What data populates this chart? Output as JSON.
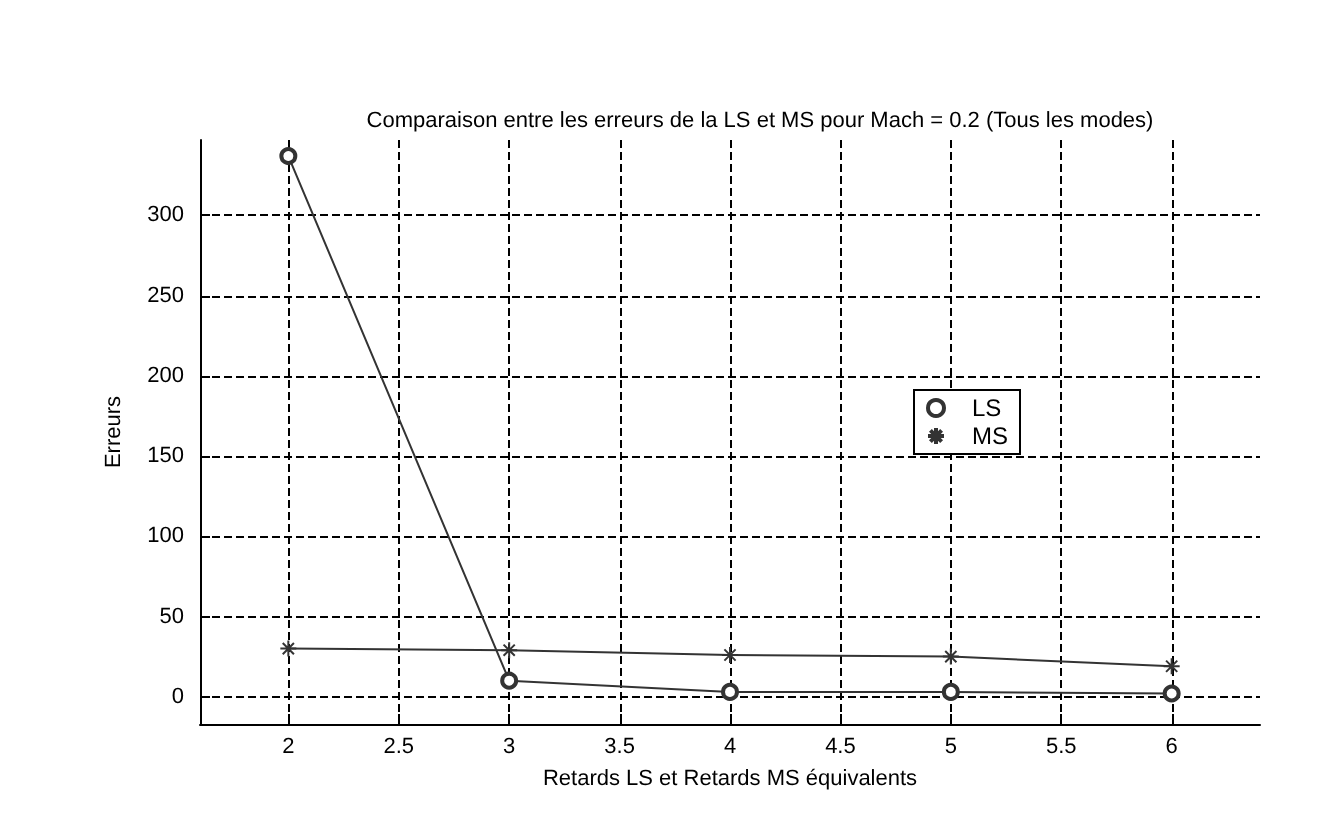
{
  "chart_data": {
    "type": "line",
    "title": "Comparaison entre les erreurs de la LS et MS pour Mach = 0.2 (Tous les modes)",
    "xlabel": "Retards LS et Retards MS équivalents",
    "ylabel": "Erreurs",
    "x": [
      2,
      3,
      4,
      5,
      6
    ],
    "series": [
      {
        "name": "LS",
        "color": "#333333",
        "marker": "circle",
        "values": [
          337,
          10,
          3,
          3,
          2
        ]
      },
      {
        "name": "MS",
        "color": "#333333",
        "marker": "cross",
        "values": [
          30,
          29,
          26,
          25,
          19
        ]
      }
    ],
    "xlim": [
      1.6,
      6.4
    ],
    "xticks": [
      2,
      2.5,
      3,
      3.5,
      4,
      4.5,
      5,
      5.5,
      6
    ],
    "ylim": [
      -17,
      347
    ],
    "yticks": [
      0,
      50,
      100,
      150,
      200,
      250,
      300
    ],
    "grid": true,
    "legend": "right",
    "line_style": "solid"
  }
}
